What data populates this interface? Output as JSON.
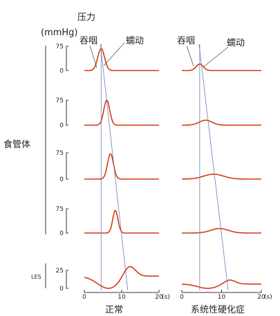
{
  "texts": {
    "pressure": "压力",
    "unit": "(mmHg)",
    "swallow": "吞咽",
    "peristalsis": "蠕动",
    "body": "食管体",
    "les": "LES",
    "normal": "正常",
    "ssc": "系统性硬化症",
    "sec": "(s)"
  },
  "colors": {
    "trace": "#d43a0f",
    "guide": "#6d7bb8",
    "axis": "#333333"
  },
  "chart_data": [
    {
      "type": "line",
      "panel": "正常",
      "xlabel": "(s)",
      "ylabel": "压力(mmHg)",
      "xlim": [
        0,
        20
      ],
      "x_ticks": [
        0,
        10,
        20
      ],
      "rows": [
        {
          "label": "食管体",
          "ylim": [
            0,
            75
          ],
          "y_ticks": [
            0,
            75
          ],
          "baseline": 0,
          "peaks": [
            {
              "time": 4.5,
              "pressure": 68,
              "width": 0.9
            }
          ]
        },
        {
          "label": "食管体",
          "ylim": [
            0,
            75
          ],
          "y_ticks": [
            0,
            75
          ],
          "baseline": 0,
          "peaks": [
            {
              "time": 6,
              "pressure": 75,
              "width": 0.8
            }
          ]
        },
        {
          "label": "食管体",
          "ylim": [
            0,
            75
          ],
          "y_ticks": [
            0,
            75
          ],
          "baseline": 0,
          "peaks": [
            {
              "time": 7,
              "pressure": 72,
              "width": 0.8
            }
          ]
        },
        {
          "label": "食管体",
          "ylim": [
            0,
            75
          ],
          "y_ticks": [
            0,
            75
          ],
          "baseline": 0,
          "peaks": [
            {
              "time": 8.3,
              "pressure": 70,
              "width": 0.7
            }
          ]
        },
        {
          "label": "LES",
          "ylim": [
            0,
            25
          ],
          "y_ticks": [
            0,
            25
          ],
          "baseline": 17,
          "peaks": [
            {
              "time": 6.5,
              "pressure": -17,
              "width": 3.0
            },
            {
              "time": 12,
              "pressure": 16,
              "width": 1.6
            }
          ]
        }
      ]
    },
    {
      "type": "line",
      "panel": "系统性硬化症",
      "xlabel": "(s)",
      "xlim": [
        0,
        20
      ],
      "x_ticks": [
        0,
        10,
        20
      ],
      "rows": [
        {
          "label": "食管体",
          "ylim": [
            0,
            75
          ],
          "baseline": 0,
          "peaks": [
            {
              "time": 4.5,
              "pressure": 20,
              "width": 0.9
            }
          ]
        },
        {
          "label": "食管体",
          "ylim": [
            0,
            75
          ],
          "baseline": 0,
          "peaks": [
            {
              "time": 6,
              "pressure": 15,
              "width": 1.6
            }
          ]
        },
        {
          "label": "食管体",
          "ylim": [
            0,
            75
          ],
          "baseline": 0,
          "peaks": [
            {
              "time": 8,
              "pressure": 14,
              "width": 2.5
            }
          ]
        },
        {
          "label": "食管体",
          "ylim": [
            0,
            75
          ],
          "baseline": 0,
          "peaks": [
            {
              "time": 9.5,
              "pressure": 14,
              "width": 2.2
            }
          ]
        },
        {
          "label": "LES",
          "ylim": [
            0,
            25
          ],
          "baseline": 6,
          "peaks": [
            {
              "time": 6.5,
              "pressure": -6,
              "width": 2.5
            },
            {
              "time": 12,
              "pressure": 6,
              "width": 1.4
            }
          ]
        }
      ]
    }
  ]
}
